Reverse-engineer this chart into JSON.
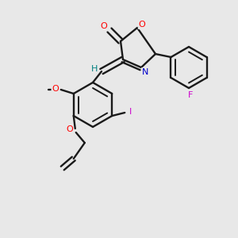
{
  "bg_color": "#e8e8e8",
  "bond_color": "#1a1a1a",
  "atom_colors": {
    "O": "#ff0000",
    "N": "#0000cc",
    "F": "#cc00cc",
    "I": "#cc00cc",
    "H": "#008080",
    "C": "#1a1a1a"
  },
  "figsize": [
    3.0,
    3.0
  ],
  "dpi": 100
}
